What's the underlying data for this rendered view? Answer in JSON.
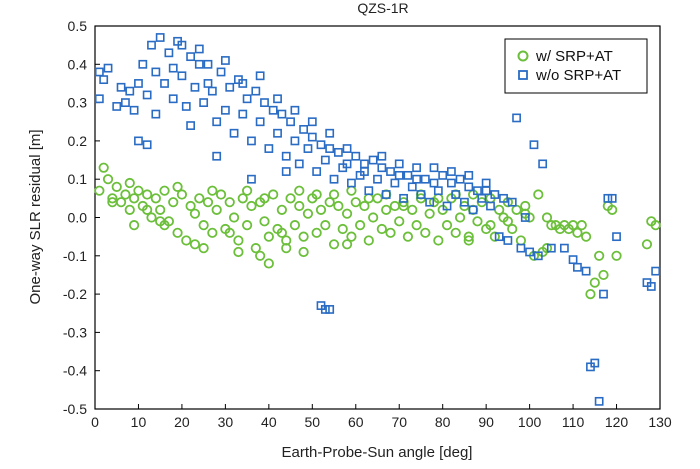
{
  "chart_data": {
    "type": "scatter",
    "title": "QZS-1R",
    "xlabel": "Earth-Probe-Sun angle [deg]",
    "ylabel": "One-way SLR residual [m]",
    "xlim": [
      0,
      130
    ],
    "ylim": [
      -0.5,
      0.5
    ],
    "xticks": [
      0,
      10,
      20,
      30,
      40,
      50,
      60,
      70,
      80,
      90,
      100,
      110,
      120,
      130
    ],
    "yticks": [
      0.5,
      0.4,
      0.3,
      0.2,
      0.1,
      0.0,
      -0.1,
      -0.2,
      -0.3,
      -0.4,
      -0.5
    ],
    "xtick_labels": [
      "0",
      "10",
      "20",
      "30",
      "40",
      "50",
      "60",
      "70",
      "80",
      "90",
      "100",
      "110",
      "120",
      "130"
    ],
    "ytick_labels": [
      "0.5",
      "0.4",
      "0.3",
      "0.2",
      "0.1",
      "0.0",
      "-0.1",
      "-0.2",
      "-0.3",
      "-0.4",
      "-0.5"
    ],
    "legend_position": "top-right",
    "series": [
      {
        "name": "w/ SRP+AT",
        "marker": "circle",
        "color": "#6cbf3a",
        "points": [
          [
            1,
            0.07
          ],
          [
            2,
            0.13
          ],
          [
            3,
            0.1
          ],
          [
            4,
            0.05
          ],
          [
            5,
            0.08
          ],
          [
            6,
            0.04
          ],
          [
            7,
            0.06
          ],
          [
            8,
            0.02
          ],
          [
            9,
            0.05
          ],
          [
            10,
            0.07
          ],
          [
            11,
            0.03
          ],
          [
            12,
            0.06
          ],
          [
            13,
            0.0
          ],
          [
            14,
            0.05
          ],
          [
            15,
            0.02
          ],
          [
            16,
            0.07
          ],
          [
            17,
            -0.01
          ],
          [
            18,
            0.04
          ],
          [
            19,
            -0.04
          ],
          [
            20,
            0.06
          ],
          [
            21,
            -0.06
          ],
          [
            22,
            0.03
          ],
          [
            23,
            -0.07
          ],
          [
            24,
            0.05
          ],
          [
            25,
            -0.02
          ],
          [
            26,
            0.04
          ],
          [
            27,
            -0.04
          ],
          [
            28,
            0.02
          ],
          [
            29,
            0.06
          ],
          [
            30,
            -0.03
          ],
          [
            31,
            0.04
          ],
          [
            32,
            0.0
          ],
          [
            33,
            -0.06
          ],
          [
            34,
            0.05
          ],
          [
            35,
            -0.02
          ],
          [
            36,
            0.03
          ],
          [
            37,
            -0.08
          ],
          [
            38,
            0.04
          ],
          [
            39,
            -0.01
          ],
          [
            40,
            -0.05
          ],
          [
            41,
            0.06
          ],
          [
            42,
            -0.03
          ],
          [
            43,
            0.02
          ],
          [
            44,
            -0.06
          ],
          [
            45,
            0.05
          ],
          [
            46,
            -0.02
          ],
          [
            47,
            0.03
          ],
          [
            48,
            -0.05
          ],
          [
            49,
            0.01
          ],
          [
            50,
            0.05
          ],
          [
            51,
            -0.04
          ],
          [
            52,
            0.02
          ],
          [
            53,
            -0.02
          ],
          [
            54,
            0.04
          ],
          [
            55,
            -0.07
          ],
          [
            56,
            0.03
          ],
          [
            57,
            -0.03
          ],
          [
            58,
            0.01
          ],
          [
            59,
            -0.05
          ],
          [
            60,
            0.04
          ],
          [
            61,
            -0.02
          ],
          [
            62,
            0.03
          ],
          [
            63,
            -0.06
          ],
          [
            64,
            0.0
          ],
          [
            65,
            0.05
          ],
          [
            66,
            -0.03
          ],
          [
            67,
            0.02
          ],
          [
            68,
            -0.04
          ],
          [
            69,
            0.03
          ],
          [
            70,
            -0.01
          ],
          [
            71,
            0.04
          ],
          [
            72,
            -0.05
          ],
          [
            73,
            0.02
          ],
          [
            74,
            -0.02
          ],
          [
            75,
            0.05
          ],
          [
            76,
            -0.04
          ],
          [
            77,
            0.01
          ],
          [
            78,
            0.04
          ],
          [
            79,
            -0.06
          ],
          [
            80,
            0.02
          ],
          [
            81,
            -0.02
          ],
          [
            82,
            0.05
          ],
          [
            83,
            -0.04
          ],
          [
            84,
            0.0
          ],
          [
            85,
            0.03
          ],
          [
            86,
            -0.05
          ],
          [
            87,
            0.02
          ],
          [
            88,
            -0.01
          ],
          [
            89,
            0.04
          ],
          [
            90,
            -0.03
          ],
          [
            91,
            0.05
          ],
          [
            92,
            -0.05
          ],
          [
            93,
            0.02
          ],
          [
            94,
            0.0
          ],
          [
            95,
            0.04
          ],
          [
            96,
            -0.03
          ],
          [
            97,
            0.02
          ],
          [
            98,
            -0.06
          ],
          [
            99,
            0.03
          ],
          [
            100,
            0.0
          ],
          [
            101,
            -0.1
          ],
          [
            102,
            0.06
          ],
          [
            103,
            -0.09
          ],
          [
            104,
            0.0
          ],
          [
            105,
            -0.02
          ],
          [
            106,
            -0.02
          ],
          [
            107,
            -0.03
          ],
          [
            108,
            -0.02
          ],
          [
            109,
            -0.03
          ],
          [
            110,
            -0.02
          ],
          [
            111,
            -0.04
          ],
          [
            112,
            -0.02
          ],
          [
            113,
            -0.05
          ],
          [
            114,
            -0.2
          ],
          [
            115,
            -0.17
          ],
          [
            116,
            -0.1
          ],
          [
            117,
            -0.15
          ],
          [
            118,
            0.03
          ],
          [
            119,
            0.02
          ],
          [
            120,
            -0.1
          ],
          [
            127,
            -0.07
          ],
          [
            128,
            -0.01
          ],
          [
            129,
            -0.02
          ],
          [
            4,
            0.04
          ],
          [
            8,
            0.09
          ],
          [
            12,
            0.02
          ],
          [
            16,
            -0.02
          ],
          [
            19,
            0.08
          ],
          [
            23,
            0.01
          ],
          [
            27,
            0.07
          ],
          [
            31,
            -0.04
          ],
          [
            35,
            0.07
          ],
          [
            39,
            0.05
          ],
          [
            43,
            -0.04
          ],
          [
            47,
            0.07
          ],
          [
            51,
            0.06
          ],
          [
            55,
            0.06
          ],
          [
            59,
            0.07
          ],
          [
            63,
            0.05
          ],
          [
            67,
            0.06
          ],
          [
            71,
            0.03
          ],
          [
            75,
            0.06
          ],
          [
            79,
            0.05
          ],
          [
            83,
            0.06
          ],
          [
            87,
            0.06
          ],
          [
            91,
            -0.02
          ],
          [
            95,
            -0.01
          ],
          [
            99,
            0.01
          ],
          [
            38,
            -0.1
          ],
          [
            40,
            -0.12
          ],
          [
            48,
            -0.09
          ],
          [
            33,
            -0.09
          ],
          [
            25,
            -0.08
          ],
          [
            15,
            -0.01
          ],
          [
            9,
            -0.02
          ],
          [
            44,
            -0.08
          ],
          [
            58,
            -0.07
          ],
          [
            86,
            -0.06
          ],
          [
            104,
            -0.08
          ]
        ]
      },
      {
        "name": "w/o SRP+AT",
        "marker": "square",
        "color": "#2a6cc4",
        "points": [
          [
            1,
            0.31
          ],
          [
            1,
            0.38
          ],
          [
            2,
            0.36
          ],
          [
            3,
            0.39
          ],
          [
            5,
            0.29
          ],
          [
            7,
            0.3
          ],
          [
            8,
            0.33
          ],
          [
            9,
            0.28
          ],
          [
            10,
            0.35
          ],
          [
            11,
            0.4
          ],
          [
            12,
            0.32
          ],
          [
            13,
            0.45
          ],
          [
            14,
            0.38
          ],
          [
            15,
            0.47
          ],
          [
            16,
            0.35
          ],
          [
            17,
            0.43
          ],
          [
            18,
            0.31
          ],
          [
            19,
            0.46
          ],
          [
            20,
            0.37
          ],
          [
            21,
            0.29
          ],
          [
            22,
            0.42
          ],
          [
            23,
            0.34
          ],
          [
            24,
            0.44
          ],
          [
            25,
            0.3
          ],
          [
            26,
            0.4
          ],
          [
            27,
            0.33
          ],
          [
            28,
            0.25
          ],
          [
            29,
            0.38
          ],
          [
            30,
            0.28
          ],
          [
            31,
            0.34
          ],
          [
            32,
            0.22
          ],
          [
            33,
            0.36
          ],
          [
            34,
            0.27
          ],
          [
            35,
            0.31
          ],
          [
            36,
            0.2
          ],
          [
            37,
            0.33
          ],
          [
            38,
            0.25
          ],
          [
            39,
            0.3
          ],
          [
            40,
            0.18
          ],
          [
            41,
            0.28
          ],
          [
            42,
            0.22
          ],
          [
            43,
            0.27
          ],
          [
            44,
            0.16
          ],
          [
            45,
            0.25
          ],
          [
            46,
            0.2
          ],
          [
            47,
            0.14
          ],
          [
            48,
            0.23
          ],
          [
            49,
            0.18
          ],
          [
            50,
            0.21
          ],
          [
            51,
            0.12
          ],
          [
            52,
            0.19
          ],
          [
            53,
            0.15
          ],
          [
            54,
            0.22
          ],
          [
            55,
            0.1
          ],
          [
            56,
            0.17
          ],
          [
            57,
            0.13
          ],
          [
            58,
            0.18
          ],
          [
            59,
            0.09
          ],
          [
            60,
            0.16
          ],
          [
            61,
            0.11
          ],
          [
            62,
            0.14
          ],
          [
            63,
            0.07
          ],
          [
            64,
            0.15
          ],
          [
            65,
            0.1
          ],
          [
            66,
            0.13
          ],
          [
            67,
            0.06
          ],
          [
            68,
            0.12
          ],
          [
            69,
            0.09
          ],
          [
            70,
            0.14
          ],
          [
            71,
            0.05
          ],
          [
            72,
            0.11
          ],
          [
            73,
            0.08
          ],
          [
            74,
            0.13
          ],
          [
            75,
            0.06
          ],
          [
            76,
            0.1
          ],
          [
            77,
            0.04
          ],
          [
            78,
            0.09
          ],
          [
            79,
            0.07
          ],
          [
            80,
            0.11
          ],
          [
            81,
            0.03
          ],
          [
            82,
            0.09
          ],
          [
            83,
            0.06
          ],
          [
            84,
            0.1
          ],
          [
            85,
            0.04
          ],
          [
            86,
            0.08
          ],
          [
            87,
            0.02
          ],
          [
            88,
            0.07
          ],
          [
            89,
            0.05
          ],
          [
            90,
            0.09
          ],
          [
            91,
            0.03
          ],
          [
            92,
            0.06
          ],
          [
            93,
            -0.05
          ],
          [
            94,
            0.05
          ],
          [
            95,
            -0.06
          ],
          [
            96,
            0.04
          ],
          [
            97,
            0.26
          ],
          [
            98,
            -0.08
          ],
          [
            99,
            0.0
          ],
          [
            100,
            -0.09
          ],
          [
            101,
            0.19
          ],
          [
            102,
            -0.1
          ],
          [
            103,
            0.14
          ],
          [
            105,
            -0.08
          ],
          [
            108,
            -0.08
          ],
          [
            110,
            -0.11
          ],
          [
            111,
            -0.13
          ],
          [
            113,
            -0.14
          ],
          [
            114,
            -0.39
          ],
          [
            115,
            -0.38
          ],
          [
            116,
            -0.48
          ],
          [
            117,
            -0.2
          ],
          [
            118,
            0.05
          ],
          [
            119,
            0.05
          ],
          [
            120,
            -0.05
          ],
          [
            127,
            -0.17
          ],
          [
            128,
            -0.18
          ],
          [
            129,
            -0.14
          ],
          [
            52,
            -0.23
          ],
          [
            53,
            -0.24
          ],
          [
            54,
            -0.24
          ],
          [
            6,
            0.34
          ],
          [
            10,
            0.2
          ],
          [
            14,
            0.27
          ],
          [
            18,
            0.39
          ],
          [
            22,
            0.24
          ],
          [
            26,
            0.35
          ],
          [
            30,
            0.41
          ],
          [
            34,
            0.35
          ],
          [
            38,
            0.37
          ],
          [
            42,
            0.31
          ],
          [
            46,
            0.28
          ],
          [
            50,
            0.25
          ],
          [
            54,
            0.18
          ],
          [
            58,
            0.14
          ],
          [
            62,
            0.12
          ],
          [
            66,
            0.16
          ],
          [
            70,
            0.11
          ],
          [
            74,
            0.1
          ],
          [
            78,
            0.13
          ],
          [
            82,
            0.12
          ],
          [
            86,
            0.11
          ],
          [
            90,
            0.07
          ],
          [
            28,
            0.16
          ],
          [
            36,
            0.1
          ],
          [
            44,
            0.12
          ],
          [
            12,
            0.19
          ],
          [
            20,
            0.45
          ],
          [
            24,
            0.4
          ]
        ]
      }
    ]
  }
}
